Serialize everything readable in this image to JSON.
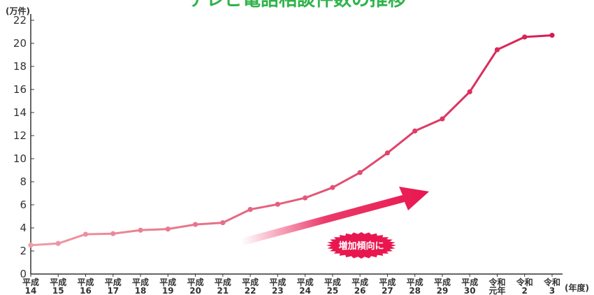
{
  "chart_data": {
    "type": "line",
    "title": "テレビ電話相談件数の推移",
    "y_unit": "(万件)",
    "x_unit": "(年度)",
    "ylim": [
      0,
      22
    ],
    "yticks": [
      0,
      2,
      4,
      6,
      8,
      10,
      12,
      14,
      16,
      18,
      20,
      22
    ],
    "grid": false,
    "categories": [
      [
        "平成",
        "14"
      ],
      [
        "平成",
        "15"
      ],
      [
        "平成",
        "16"
      ],
      [
        "平成",
        "17"
      ],
      [
        "平成",
        "18"
      ],
      [
        "平成",
        "19"
      ],
      [
        "平成",
        "20"
      ],
      [
        "平成",
        "21"
      ],
      [
        "平成",
        "22"
      ],
      [
        "平成",
        "23"
      ],
      [
        "平成",
        "24"
      ],
      [
        "平成",
        "25"
      ],
      [
        "平成",
        "26"
      ],
      [
        "平成",
        "27"
      ],
      [
        "平成",
        "28"
      ],
      [
        "平成",
        "29"
      ],
      [
        "平成",
        "30"
      ],
      [
        "令和",
        "元年"
      ],
      [
        "令和",
        "2"
      ],
      [
        "令和",
        "3"
      ]
    ],
    "series": [
      {
        "values": [
          2.5,
          2.65,
          3.45,
          3.5,
          3.8,
          3.9,
          4.3,
          4.45,
          5.6,
          6.05,
          6.6,
          7.5,
          8.8,
          10.5,
          12.4,
          13.45,
          15.8,
          19.45,
          20.55,
          20.7
        ]
      }
    ],
    "annotation": "増加傾向に",
    "colors": {
      "line_start": "#ef9ca6",
      "line_end": "#d81c50",
      "arrow": "#e8174f",
      "badge": "#e8174f",
      "title": "#2fb34a",
      "axis": "#333333"
    }
  }
}
